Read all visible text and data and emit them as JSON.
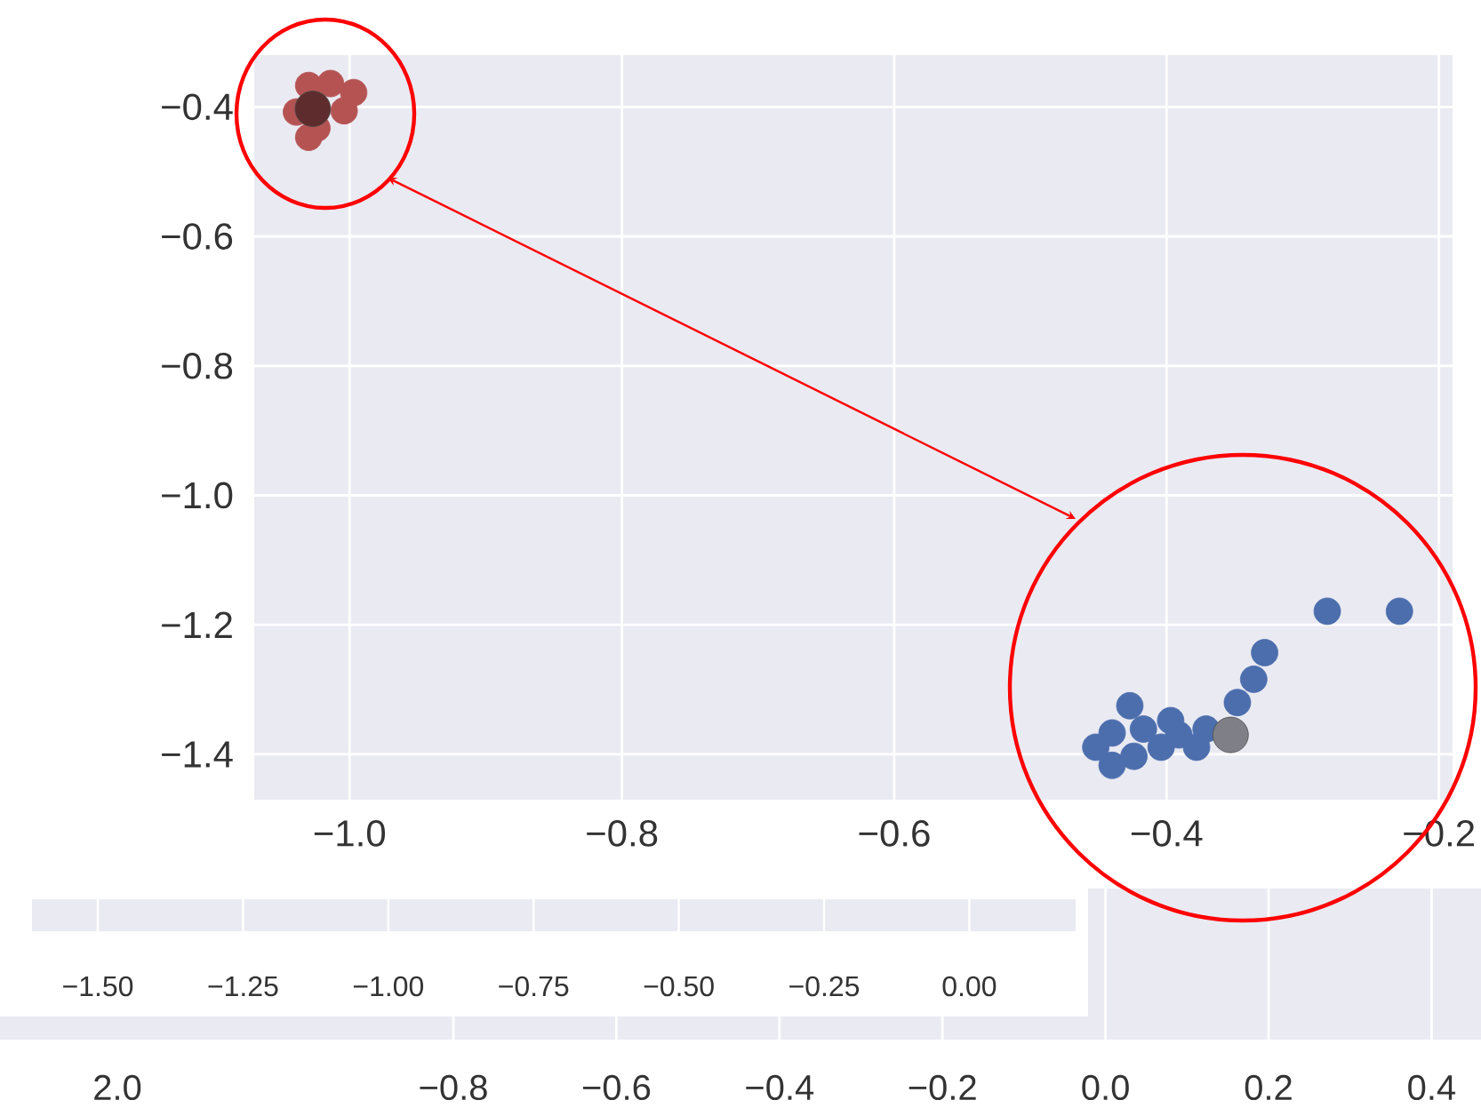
{
  "chart_data": {
    "type": "scatter",
    "xlim": [
      -1.07,
      -0.19
    ],
    "ylim": [
      -1.47,
      -0.32
    ],
    "xticks": [
      {
        "value": -1.0,
        "label": "−1.0"
      },
      {
        "value": -0.8,
        "label": "−0.8"
      },
      {
        "value": -0.6,
        "label": "−0.6"
      },
      {
        "value": -0.4,
        "label": "−0.4"
      },
      {
        "value": -0.2,
        "label": "−0.2"
      }
    ],
    "yticks": [
      {
        "value": -0.4,
        "label": "−0.4"
      },
      {
        "value": -0.6,
        "label": "−0.6"
      },
      {
        "value": -0.8,
        "label": "−0.8"
      },
      {
        "value": -1.0,
        "label": "−1.0"
      },
      {
        "value": -1.2,
        "label": "−1.2"
      },
      {
        "value": -1.4,
        "label": "−1.4"
      }
    ],
    "grid": true,
    "marker": "circle",
    "series": [
      {
        "color": "#b55353",
        "x": [
          -1.03,
          -1.014,
          -0.997,
          -1.004,
          -1.03,
          -1.024,
          -1.039
        ],
        "values": [
          -0.367,
          -0.364,
          -0.378,
          -0.406,
          -0.447,
          -0.433,
          -0.408
        ]
      },
      {
        "color": "#4c6ead",
        "x": [
          -0.282,
          -0.229,
          -0.328,
          -0.336,
          -0.348,
          -0.427,
          -0.44,
          -0.44,
          -0.424,
          -0.404,
          -0.391,
          -0.371,
          -0.378,
          -0.417,
          -0.397,
          -0.452
        ],
        "values": [
          -1.179,
          -1.179,
          -1.243,
          -1.284,
          -1.32,
          -1.325,
          -1.367,
          -1.417,
          -1.403,
          -1.389,
          -1.37,
          -1.361,
          -1.389,
          -1.361,
          -1.348,
          -1.389
        ]
      },
      {
        "colors": [
          "#5e2c2c",
          "#7f7f87"
        ],
        "x": [
          -1.027,
          -0.353
        ],
        "values": [
          -0.403,
          -1.37
        ]
      }
    ],
    "annotations": [
      "−1.50",
      "−1.25",
      "−1.00",
      "−0.75",
      "−0.50",
      "−0.25",
      "0.00",
      "2.0",
      "−0.8",
      "−0.6",
      "−0.4",
      "−0.2",
      "0.0",
      "0.2",
      "0.4"
    ]
  }
}
